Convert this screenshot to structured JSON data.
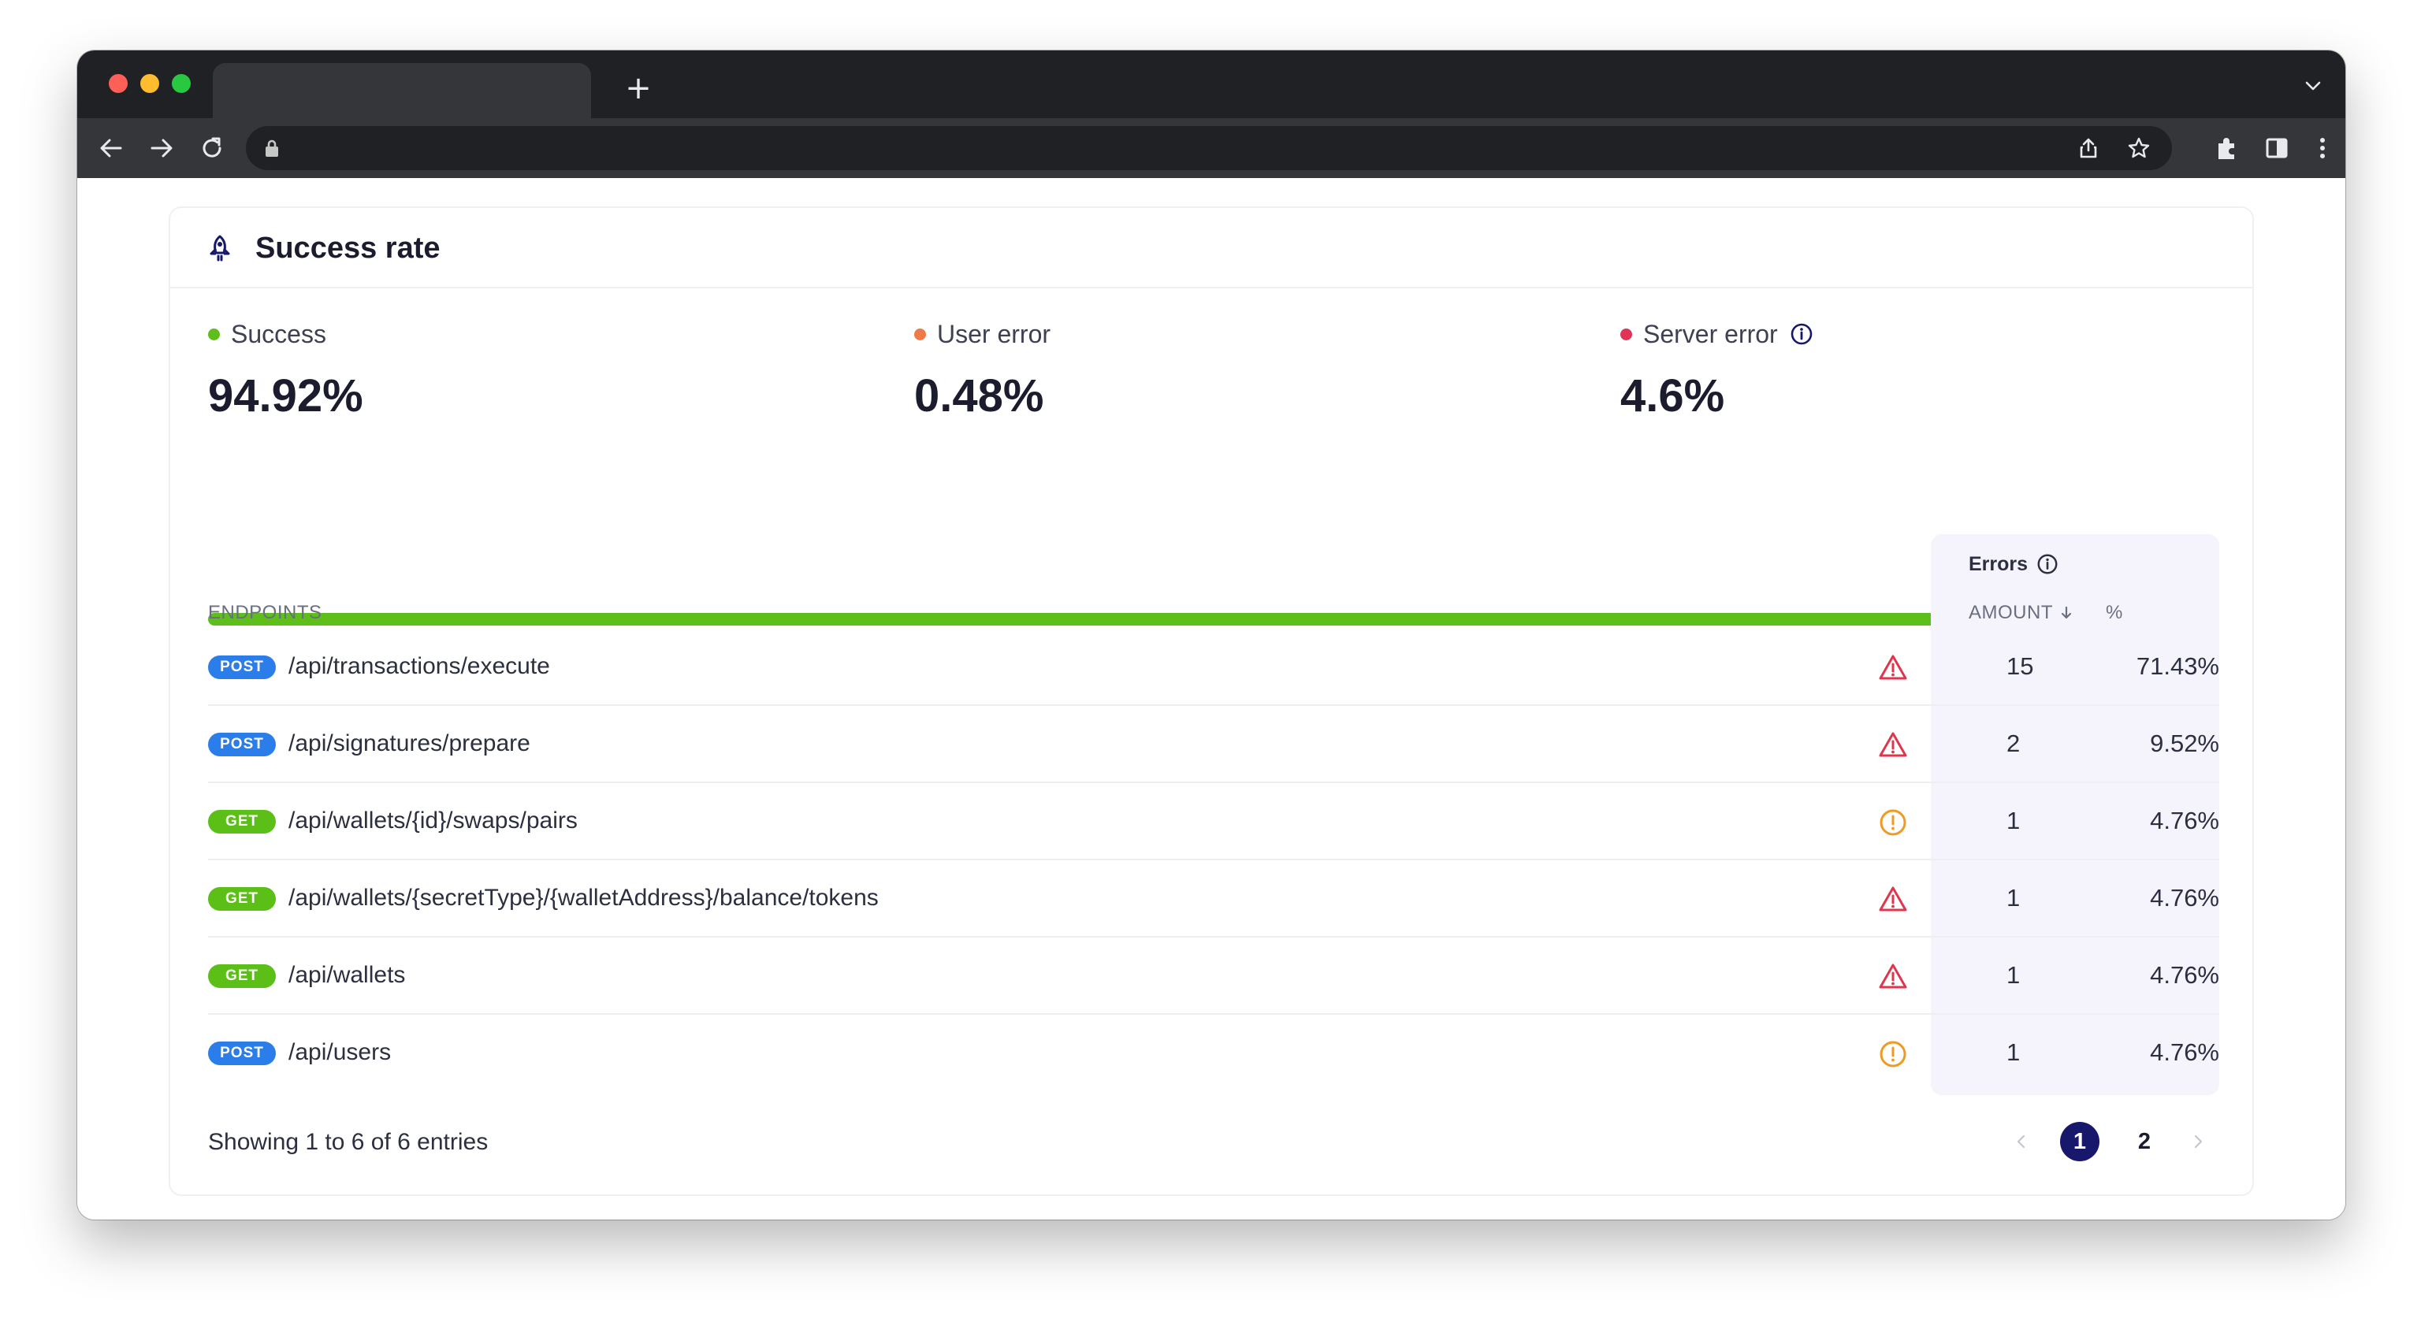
{
  "colors": {
    "success": "#5fbf1a",
    "user_error": "#f0794a",
    "server_error": "#df3457",
    "post_badge": "#2b7de9",
    "get_badge": "#5cbf18",
    "warning_triangle": "#e0354c",
    "warning_circle": "#ef9a22",
    "active_page": "#17186b"
  },
  "browser": {
    "tab_title": "",
    "address": ""
  },
  "card": {
    "title": "Success rate",
    "icon": "rocket-icon"
  },
  "stats": {
    "success": {
      "label": "Success",
      "value": "94.92%",
      "fraction": 0.9492
    },
    "user_error": {
      "label": "User error",
      "value": "0.48%",
      "fraction": 0.0048
    },
    "server_error": {
      "label": "Server error",
      "value": "4.6%",
      "fraction": 0.046,
      "info_icon": "info-icon"
    }
  },
  "table": {
    "endpoints_header": "ENDPOINTS",
    "errors_header": "Errors",
    "amount_header": "AMOUNT",
    "percent_header": "%",
    "sort": "amount-descending",
    "rows": [
      {
        "method": "POST",
        "path": "/api/transactions/execute",
        "status": "warning-triangle-icon",
        "amount": "15",
        "percent": "71.43%"
      },
      {
        "method": "POST",
        "path": "/api/signatures/prepare",
        "status": "warning-triangle-icon",
        "amount": "2",
        "percent": "9.52%"
      },
      {
        "method": "GET",
        "path": "/api/wallets/{id}/swaps/pairs",
        "status": "alert-circle-icon",
        "amount": "1",
        "percent": "4.76%"
      },
      {
        "method": "GET",
        "path": "/api/wallets/{secretType}/{walletAddress}/balance/tokens",
        "status": "warning-triangle-icon",
        "amount": "1",
        "percent": "4.76%"
      },
      {
        "method": "GET",
        "path": "/api/wallets",
        "status": "warning-triangle-icon",
        "amount": "1",
        "percent": "4.76%"
      },
      {
        "method": "POST",
        "path": "/api/users",
        "status": "alert-circle-icon",
        "amount": "1",
        "percent": "4.76%"
      }
    ]
  },
  "footer": {
    "summary": "Showing 1 to 6 of 6 entries",
    "pages": [
      "1",
      "2"
    ],
    "current_page": "1"
  }
}
